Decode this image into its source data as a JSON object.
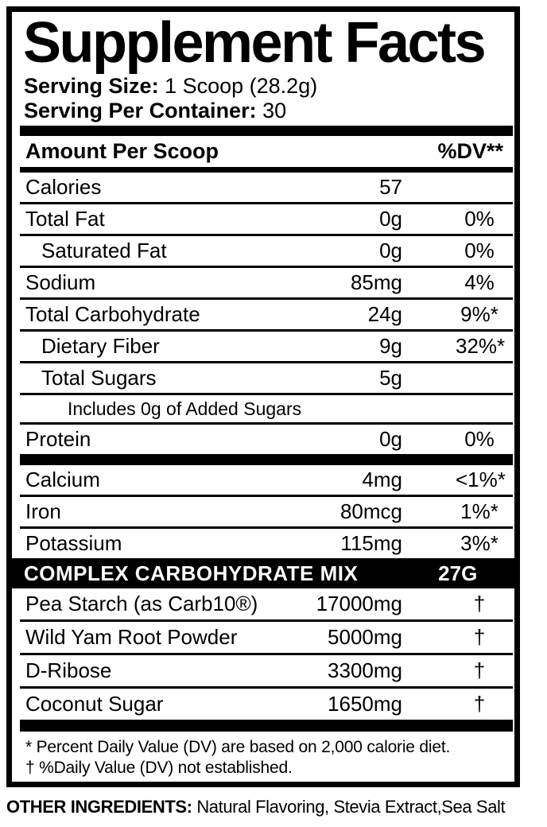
{
  "colors": {
    "ink": "#000000",
    "paper": "#ffffff"
  },
  "panel": {
    "title": "Supplement Facts",
    "serving_size": {
      "label": "Serving Size:",
      "value": "1 Scoop (28.2g)"
    },
    "servings_per_container": {
      "label": "Serving Per Container:",
      "value": "30"
    },
    "columns": {
      "amount_header": "Amount Per Scoop",
      "dv_header": "%DV**"
    },
    "main_rows": [
      {
        "name": "Calories",
        "amount": "57",
        "dv": "",
        "indent": 0
      },
      {
        "name": "Total Fat",
        "amount": "0g",
        "dv": "0%",
        "indent": 0
      },
      {
        "name": "Saturated Fat",
        "amount": "0g",
        "dv": "0%",
        "indent": 1
      },
      {
        "name": "Sodium",
        "amount": "85mg",
        "dv": "4%",
        "indent": 0
      },
      {
        "name": "Total Carbohydrate",
        "amount": "24g",
        "dv": "9%*",
        "indent": 0
      },
      {
        "name": "Dietary Fiber",
        "amount": "9g",
        "dv": "32%*",
        "indent": 1
      },
      {
        "name": "Total Sugars",
        "amount": "5g",
        "dv": "",
        "indent": 1
      },
      {
        "name": "Includes 0g of Added Sugars",
        "amount": "",
        "dv": "",
        "indent": 2,
        "small": true
      },
      {
        "name": "Protein",
        "amount": "0g",
        "dv": "0%",
        "indent": 0
      }
    ],
    "mineral_rows": [
      {
        "name": "Calcium",
        "amount": "4mg",
        "dv": "<1%*",
        "indent": 0
      },
      {
        "name": "Iron",
        "amount": "80mcg",
        "dv": "1%*",
        "indent": 0
      },
      {
        "name": "Potassium",
        "amount": "115mg",
        "dv": "3%*",
        "indent": 0
      }
    ],
    "mix_band": {
      "name": "COMPLEX CARBOHYDRATE MIX",
      "amount": "27G"
    },
    "mix_rows": [
      {
        "name": "Pea Starch (as Carb10®)",
        "amount": "17000mg",
        "dv": "†",
        "indent": 0
      },
      {
        "name": "Wild Yam Root Powder",
        "amount": "5000mg",
        "dv": "†",
        "indent": 0
      },
      {
        "name": "D-Ribose",
        "amount": "3300mg",
        "dv": "†",
        "indent": 0
      },
      {
        "name": "Coconut Sugar",
        "amount": "1650mg",
        "dv": "†",
        "indent": 0
      }
    ],
    "footnotes": [
      "* Percent Daily Value (DV) are based on 2,000 calorie diet.",
      "† %Daily Value (DV) not established."
    ]
  },
  "other_ingredients": {
    "label": "OTHER INGREDIENTS:",
    "value": "Natural Flavoring, Stevia Extract,Sea Salt"
  }
}
